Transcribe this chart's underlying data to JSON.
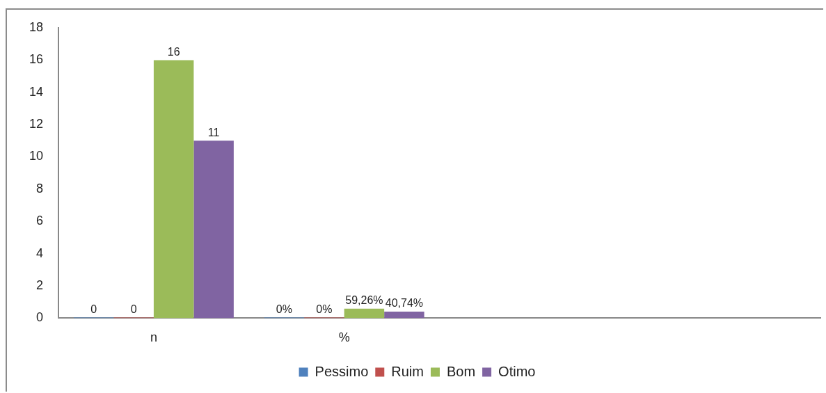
{
  "chart_data": {
    "type": "bar",
    "categories": [
      "n",
      "%",
      null,
      null
    ],
    "series": [
      {
        "name": "Pessimo",
        "color": "#4f81bd",
        "values": [
          0,
          0,
          null,
          null
        ],
        "value_labels": [
          "0",
          "0%",
          null,
          null
        ]
      },
      {
        "name": "Ruim",
        "color": "#c0504d",
        "values": [
          0,
          0,
          null,
          null
        ],
        "value_labels": [
          "0",
          "0%",
          null,
          null
        ]
      },
      {
        "name": "Bom",
        "color": "#9bbb59",
        "values": [
          16,
          0.5926,
          null,
          null
        ],
        "value_labels": [
          "16",
          "59,26%",
          null,
          null
        ]
      },
      {
        "name": "Otimo",
        "color": "#8064a2",
        "values": [
          11,
          0.4074,
          null,
          null
        ],
        "value_labels": [
          "11",
          "40,74%",
          null,
          null
        ]
      }
    ],
    "ylim": [
      0,
      18
    ],
    "yticks": [
      0,
      2,
      4,
      6,
      8,
      10,
      12,
      14,
      16,
      18
    ],
    "grid": false,
    "legend": "bottom"
  }
}
